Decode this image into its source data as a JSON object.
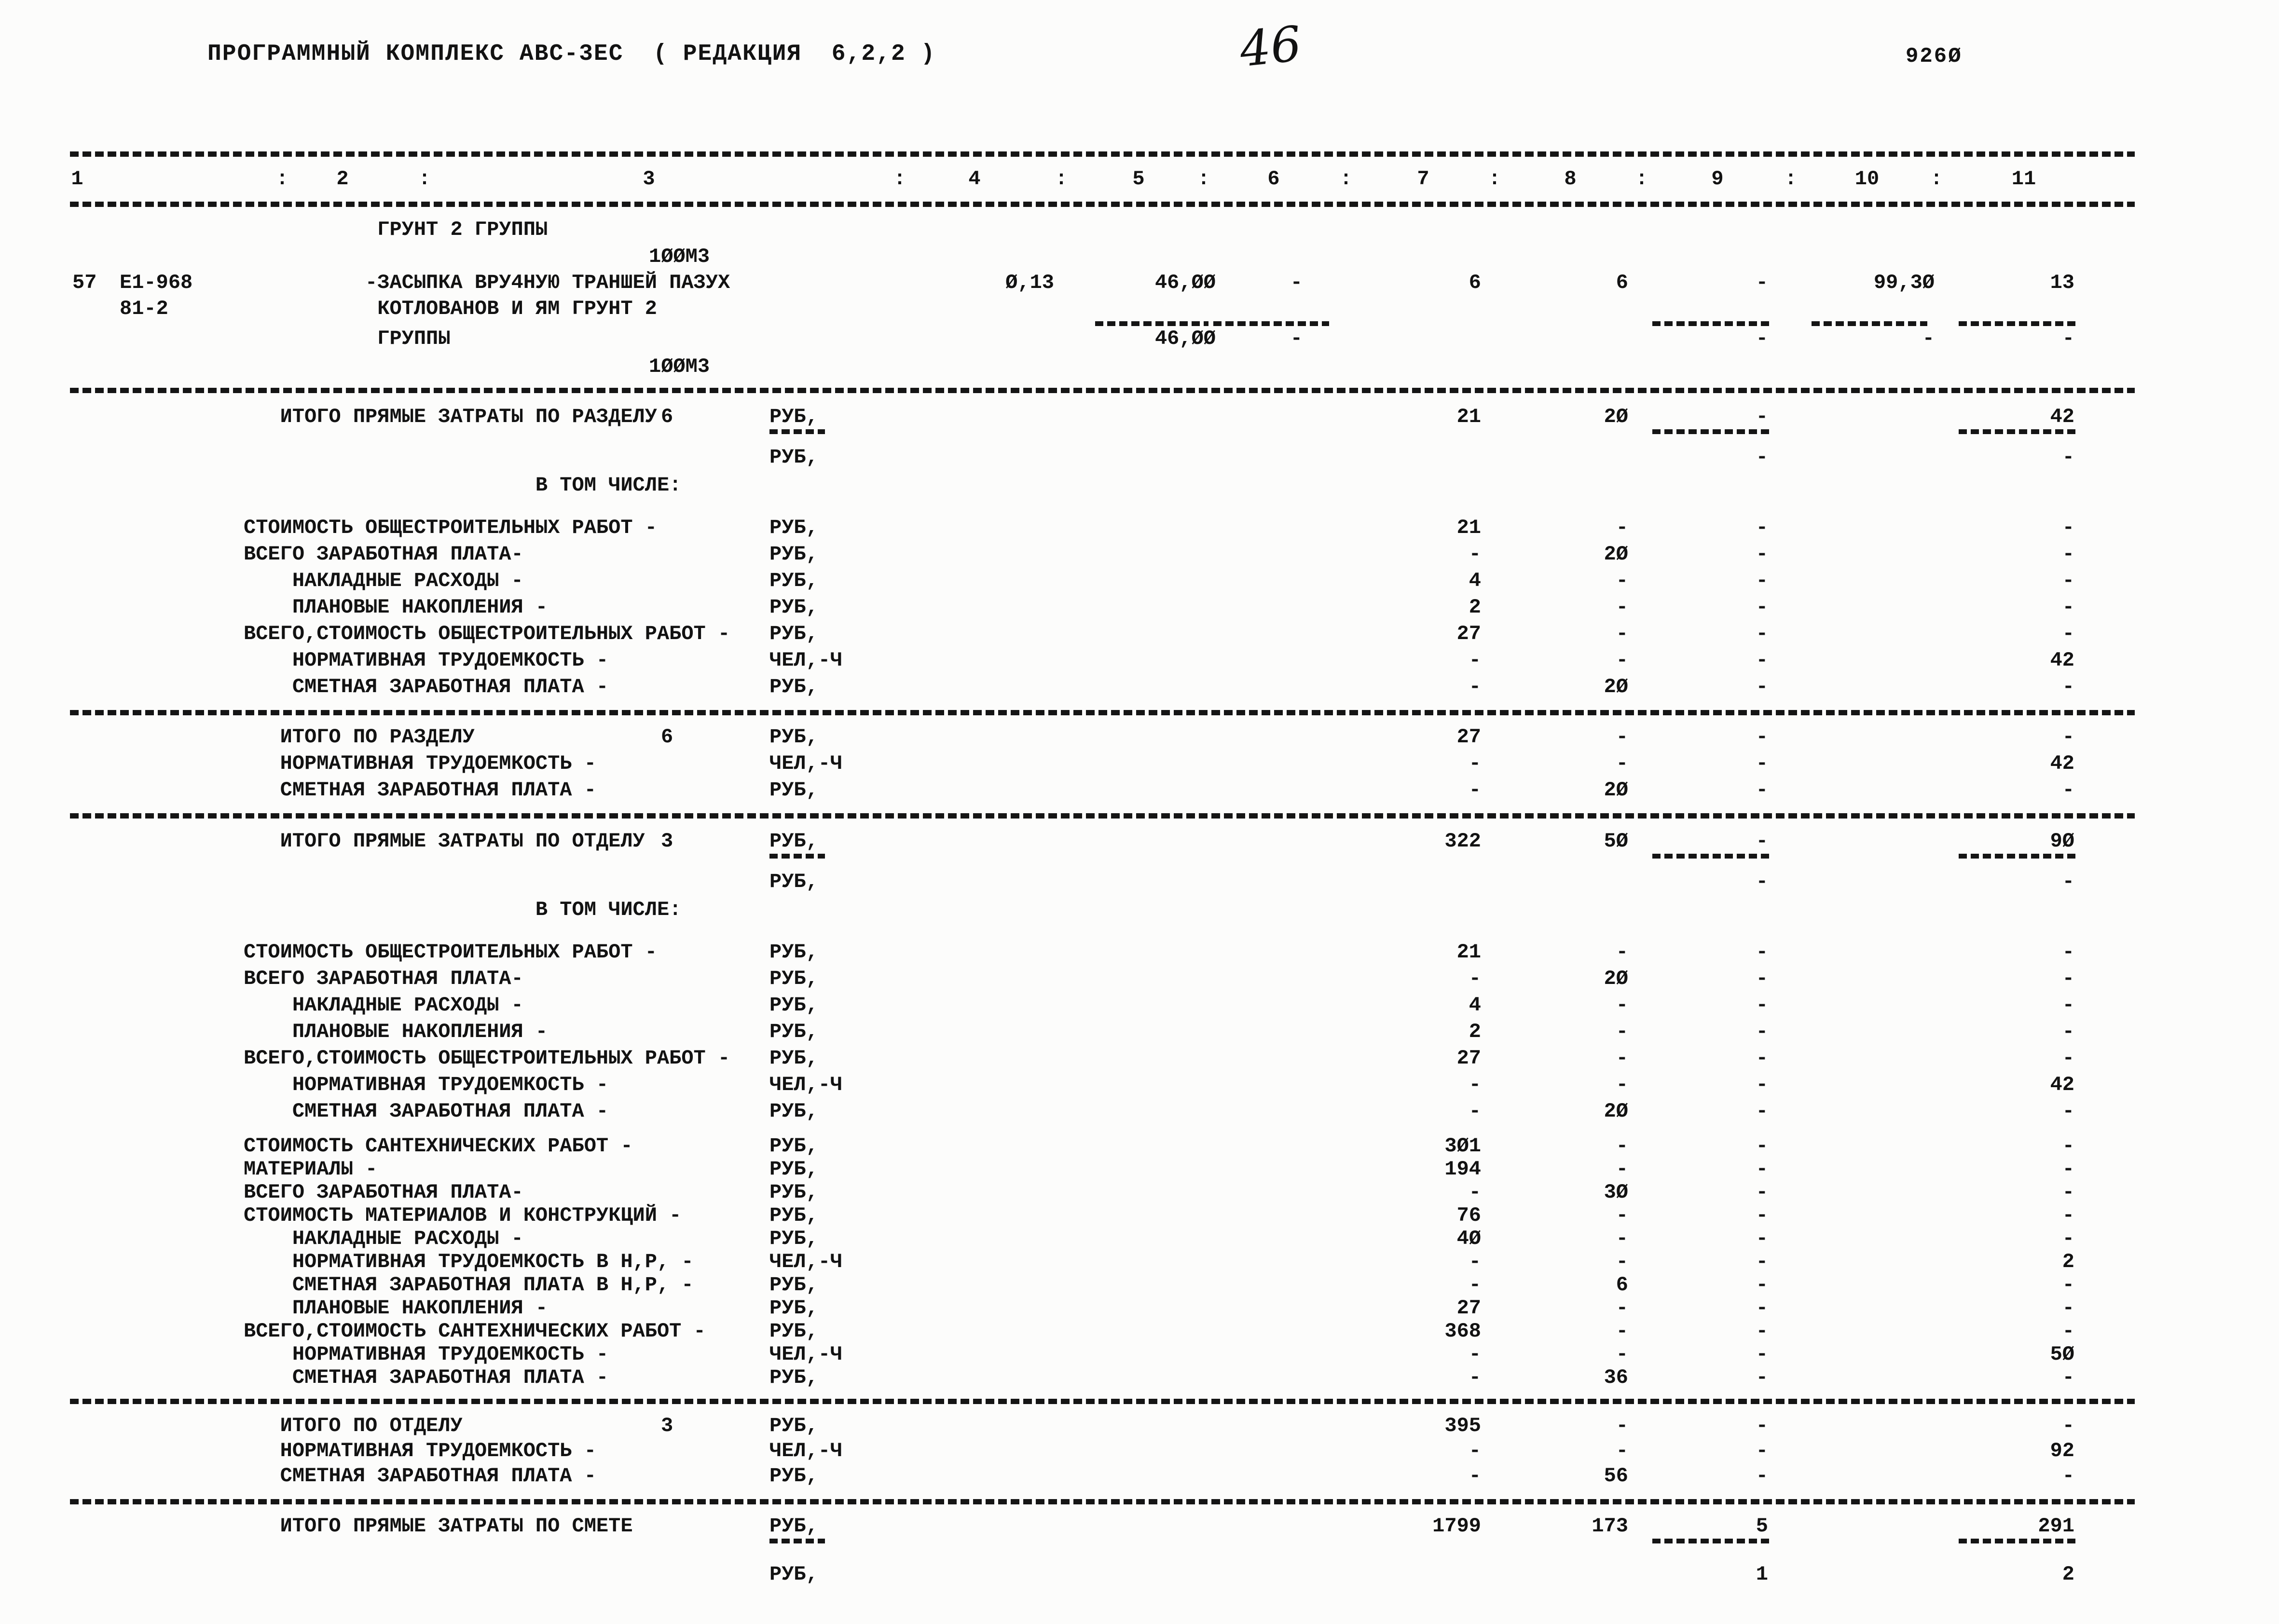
{
  "page": {
    "title": "ПРОГРАММНЫЙ КОМПЛЕКС АВС-3ЕС  ( РЕДАКЦИЯ  6,2,2 )",
    "written_page_number": "46",
    "doc_number": "926Ø"
  },
  "table": {
    "column_headers": [
      "1",
      "2",
      "3",
      "4",
      "5",
      "6",
      "7",
      "8",
      "9",
      "10",
      "11"
    ],
    "column_separator": ":",
    "rows": [
      {
        "type": "sep"
      },
      {
        "type": "colnums"
      },
      {
        "type": "sep"
      },
      {
        "cells": {
          "label": "           ГРУНТ 2 ГРУППЫ"
        }
      },
      {
        "cells": {
          "vol": "1ØØМ3"
        }
      },
      {
        "cells": {
          "c1": "57",
          "c2": "Е1-968",
          "label": "          -ЗАСЫПКА ВРУ4НУЮ ТРАНШЕЙ ПАЗУХ",
          "c4": "Ø,13",
          "c5": "46,ØØ",
          "c6": "-",
          "c7": "6",
          "c8": "6",
          "c9": "-",
          "c10": "99,3Ø",
          "c11": "13"
        }
      },
      {
        "cells": {
          "c2": "81-2",
          "label": "           КОТЛОВАНОВ И ЯМ ГРУНТ 2"
        }
      },
      {
        "type": "dashes",
        "at": [
          "c5",
          "c6",
          "c9",
          "c10",
          "c11"
        ]
      },
      {
        "cells": {
          "label": "           ГРУППЫ",
          "c5": "46,ØØ",
          "c6": "-",
          "c9": "-",
          "c10": "-",
          "c11": "-"
        }
      },
      {
        "cells": {
          "vol": "1ØØМ3"
        }
      },
      {
        "type": "sep"
      },
      {
        "cells": {
          "label": "   ИТОГО ПРЯМЫЕ ЗАТРАТЫ ПО РАЗДЕЛУ",
          "secnum": "6",
          "unit": "РУБ,",
          "c7": "21",
          "c8": "2Ø",
          "c9": "-",
          "c11": "42"
        }
      },
      {
        "type": "dashes",
        "at": [
          "unit",
          "c9",
          "c11"
        ]
      },
      {
        "cells": {
          "unit": "РУБ,",
          "c9": "-",
          "c11": "-"
        }
      },
      {
        "cells": {
          "label": "                        В ТОМ ЧИСЛЕ:"
        }
      },
      {
        "cells": {
          "label": "СТОИМОСТЬ ОБЩЕСТРОИТЕЛЬНЫХ РАБОТ -",
          "unit": "РУБ,",
          "c7": "21",
          "c8": "-",
          "c9": "-",
          "c11": "-"
        }
      },
      {
        "cells": {
          "label": "ВСЕГО ЗАРАБОТНАЯ ПЛАТА-",
          "unit": "РУБ,",
          "c7": "-",
          "c8": "2Ø",
          "c9": "-",
          "c11": "-"
        }
      },
      {
        "cells": {
          "label": "    НАКЛАДНЫЕ РАСХОДЫ -",
          "unit": "РУБ,",
          "c7": "4",
          "c8": "-",
          "c9": "-",
          "c11": "-"
        }
      },
      {
        "cells": {
          "label": "    ПЛАНОВЫЕ НАКОПЛЕНИЯ -",
          "unit": "РУБ,",
          "c7": "2",
          "c8": "-",
          "c9": "-",
          "c11": "-"
        }
      },
      {
        "cells": {
          "label": "ВСЕГО,СТОИМОСТЬ ОБЩЕСТРОИТЕЛЬНЫХ РАБОТ -",
          "unit": "РУБ,",
          "c7": "27",
          "c8": "-",
          "c9": "-",
          "c11": "-"
        }
      },
      {
        "cells": {
          "label": "    НОРМАТИВНАЯ ТРУДОЕМКОСТЬ -",
          "unit": "ЧЕЛ,-Ч",
          "c7": "-",
          "c8": "-",
          "c9": "-",
          "c11": "42"
        }
      },
      {
        "cells": {
          "label": "    СМЕТНАЯ ЗАРАБОТНАЯ ПЛАТА -",
          "unit": "РУБ,",
          "c7": "-",
          "c8": "2Ø",
          "c9": "-",
          "c11": "-"
        }
      },
      {
        "type": "sep"
      },
      {
        "cells": {
          "label": "   ИТОГО ПО РАЗДЕЛУ",
          "secnum": "6",
          "unit": "РУБ,",
          "c7": "27",
          "c8": "-",
          "c9": "-",
          "c11": "-"
        }
      },
      {
        "cells": {
          "label": "   НОРМАТИВНАЯ ТРУДОЕМКОСТЬ -",
          "unit": "ЧЕЛ,-Ч",
          "c7": "-",
          "c8": "-",
          "c9": "-",
          "c11": "42"
        }
      },
      {
        "cells": {
          "label": "   СМЕТНАЯ ЗАРАБОТНАЯ ПЛАТА -",
          "unit": "РУБ,",
          "c7": "-",
          "c8": "2Ø",
          "c9": "-",
          "c11": "-"
        }
      },
      {
        "type": "sep"
      },
      {
        "cells": {
          "label": "   ИТОГО ПРЯМЫЕ ЗАТРАТЫ ПО ОТДЕЛУ",
          "secnum": "3",
          "unit": "РУБ,",
          "c7": "322",
          "c8": "5Ø",
          "c9": "-",
          "c11": "9Ø"
        }
      },
      {
        "type": "dashes",
        "at": [
          "unit",
          "c9",
          "c11"
        ]
      },
      {
        "cells": {
          "unit": "РУБ,",
          "c9": "-",
          "c11": "-"
        }
      },
      {
        "cells": {
          "label": "                        В ТОМ ЧИСЛЕ:"
        }
      },
      {
        "cells": {
          "label": "СТОИМОСТЬ ОБЩЕСТРОИТЕЛЬНЫХ РАБОТ -",
          "unit": "РУБ,",
          "c7": "21",
          "c8": "-",
          "c9": "-",
          "c11": "-"
        }
      },
      {
        "cells": {
          "label": "ВСЕГО ЗАРАБОТНАЯ ПЛАТА-",
          "unit": "РУБ,",
          "c7": "-",
          "c8": "2Ø",
          "c9": "-",
          "c11": "-"
        }
      },
      {
        "cells": {
          "label": "    НАКЛАДНЫЕ РАСХОДЫ -",
          "unit": "РУБ,",
          "c7": "4",
          "c8": "-",
          "c9": "-",
          "c11": "-"
        }
      },
      {
        "cells": {
          "label": "    ПЛАНОВЫЕ НАКОПЛЕНИЯ -",
          "unit": "РУБ,",
          "c7": "2",
          "c8": "-",
          "c9": "-",
          "c11": "-"
        }
      },
      {
        "cells": {
          "label": "ВСЕГО,СТОИМОСТЬ ОБЩЕСТРОИТЕЛЬНЫХ РАБОТ -",
          "unit": "РУБ,",
          "c7": "27",
          "c8": "-",
          "c9": "-",
          "c11": "-"
        }
      },
      {
        "cells": {
          "label": "    НОРМАТИВНАЯ ТРУДОЕМКОСТЬ -",
          "unit": "ЧЕЛ,-Ч",
          "c7": "-",
          "c8": "-",
          "c9": "-",
          "c11": "42"
        }
      },
      {
        "cells": {
          "label": "    СМЕТНАЯ ЗАРАБОТНАЯ ПЛАТА -",
          "unit": "РУБ,",
          "c7": "-",
          "c8": "2Ø",
          "c9": "-",
          "c11": "-"
        }
      },
      {
        "cells": {
          "label": "СТОИМОСТЬ САНТЕХНИЧЕСКИХ РАБОТ -",
          "unit": "РУБ,",
          "c7": "3Ø1",
          "c8": "-",
          "c9": "-",
          "c11": "-"
        }
      },
      {
        "cells": {
          "label": "МАТЕРИАЛЫ -",
          "unit": "РУБ,",
          "c7": "194",
          "c8": "-",
          "c9": "-",
          "c11": "-"
        }
      },
      {
        "cells": {
          "label": "ВСЕГО ЗАРАБОТНАЯ ПЛАТА-",
          "unit": "РУБ,",
          "c7": "-",
          "c8": "3Ø",
          "c9": "-",
          "c11": "-"
        }
      },
      {
        "cells": {
          "label": "СТОИМОСТЬ МАТЕРИАЛОВ И КОНСТРУКЦИЙ -",
          "unit": "РУБ,",
          "c7": "76",
          "c8": "-",
          "c9": "-",
          "c11": "-"
        }
      },
      {
        "cells": {
          "label": "    НАКЛАДНЫЕ РАСХОДЫ -",
          "unit": "РУБ,",
          "c7": "4Ø",
          "c8": "-",
          "c9": "-",
          "c11": "-"
        }
      },
      {
        "cells": {
          "label": "    НОРМАТИВНАЯ ТРУДОЕМКОСТЬ В Н,Р, -",
          "unit": "ЧЕЛ,-Ч",
          "c7": "-",
          "c8": "-",
          "c9": "-",
          "c11": "2"
        }
      },
      {
        "cells": {
          "label": "    СМЕТНАЯ ЗАРАБОТНАЯ ПЛАТА В Н,Р, -",
          "unit": "РУБ,",
          "c7": "-",
          "c8": "6",
          "c9": "-",
          "c11": "-"
        }
      },
      {
        "cells": {
          "label": "    ПЛАНОВЫЕ НАКОПЛЕНИЯ -",
          "unit": "РУБ,",
          "c7": "27",
          "c8": "-",
          "c9": "-",
          "c11": "-"
        }
      },
      {
        "cells": {
          "label": "ВСЕГО,СТОИМОСТЬ САНТЕХНИЧЕСКИХ РАБОТ -",
          "unit": "РУБ,",
          "c7": "368",
          "c8": "-",
          "c9": "-",
          "c11": "-"
        }
      },
      {
        "cells": {
          "label": "    НОРМАТИВНАЯ ТРУДОЕМКОСТЬ -",
          "unit": "ЧЕЛ,-Ч",
          "c7": "-",
          "c8": "-",
          "c9": "-",
          "c11": "5Ø"
        }
      },
      {
        "cells": {
          "label": "    СМЕТНАЯ ЗАРАБОТНАЯ ПЛАТА -",
          "unit": "РУБ,",
          "c7": "-",
          "c8": "36",
          "c9": "-",
          "c11": "-"
        }
      },
      {
        "type": "sep"
      },
      {
        "cells": {
          "label": "   ИТОГО ПО ОТДЕЛУ",
          "secnum": "3",
          "unit": "РУБ,",
          "c7": "395",
          "c8": "-",
          "c9": "-",
          "c11": "-"
        }
      },
      {
        "cells": {
          "label": "   НОРМАТИВНАЯ ТРУДОЕМКОСТЬ -",
          "unit": "ЧЕЛ,-Ч",
          "c7": "-",
          "c8": "-",
          "c9": "-",
          "c11": "92"
        }
      },
      {
        "cells": {
          "label": "   СМЕТНАЯ ЗАРАБОТНАЯ ПЛАТА -",
          "unit": "РУБ,",
          "c7": "-",
          "c8": "56",
          "c9": "-",
          "c11": "-"
        }
      },
      {
        "type": "sep"
      },
      {
        "cells": {
          "label": "   ИТОГО ПРЯМЫЕ ЗАТРАТЫ ПО СМЕТЕ",
          "unit": "РУБ,",
          "c7": "1799",
          "c8": "173",
          "c9": "5",
          "c11": "291"
        }
      },
      {
        "type": "dashes",
        "at": [
          "unit",
          "c9",
          "c11"
        ]
      },
      {
        "cells": {
          "unit": "РУБ,",
          "c9": "1",
          "c11": "2"
        }
      }
    ]
  }
}
